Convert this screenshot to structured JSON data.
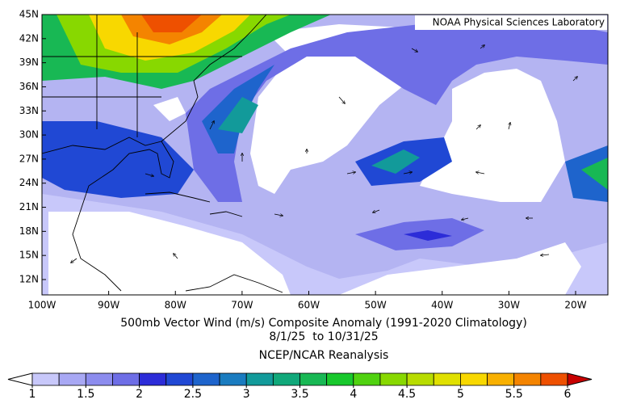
{
  "map": {
    "credit": "NOAA Physical Sciences Laboratory",
    "lat_labels": [
      "45N",
      "42N",
      "39N",
      "36N",
      "33N",
      "30N",
      "27N",
      "24N",
      "21N",
      "18N",
      "15N",
      "12N"
    ],
    "lon_labels": [
      "100W",
      "90W",
      "80W",
      "70W",
      "60W",
      "50W",
      "40W",
      "30W",
      "20W"
    ]
  },
  "title": [
    "500mb Vector Wind (m/s) Composite Anomaly (1991-2020 Climatology)",
    "8/1/25  to 10/31/25",
    "NCEP/NCAR Reanalysis"
  ],
  "colorbar": {
    "ticks": [
      1,
      1.5,
      2,
      2.5,
      3,
      3.5,
      4,
      4.5,
      5,
      5.5,
      6
    ],
    "colors": [
      "#c8c8fa",
      "#a8a8f4",
      "#8c8cee",
      "#6e6ee6",
      "#2c2cd8",
      "#2048d4",
      "#1e64cc",
      "#1a7cc0",
      "#129a9a",
      "#10a87a",
      "#18b854",
      "#18c82c",
      "#50d210",
      "#88d800",
      "#b8dc00",
      "#e0e000",
      "#f8d800",
      "#f8b000",
      "#f48400",
      "#ee5000"
    ],
    "under_color": "#ffffff",
    "over_color": "#c80000"
  }
}
